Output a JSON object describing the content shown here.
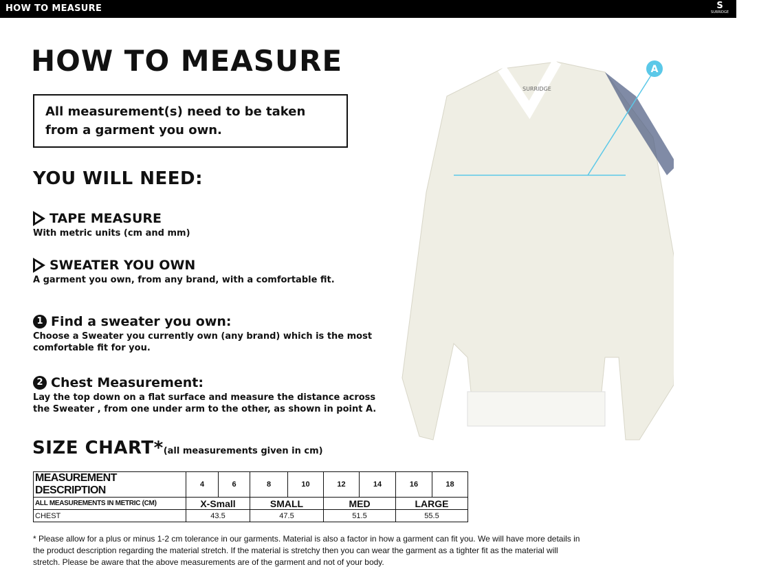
{
  "header": {
    "title": "HOW TO MEASURE",
    "logo_text": "SURRIDGE"
  },
  "page_title": "HOW TO MEASURE",
  "notice": "All measurement(s) need to be taken from a garment you own.",
  "you_will_need": {
    "heading": "YOU WILL NEED:",
    "items": [
      {
        "title": "TAPE MEASURE",
        "desc": "With metric units (cm and mm)"
      },
      {
        "title": "SWEATER YOU OWN",
        "desc": "A garment you own, from any brand, with a comfortable fit."
      }
    ]
  },
  "steps": [
    {
      "number": "1",
      "title": "Find a sweater you own:",
      "desc": "Choose a Sweater you currently own (any brand) which is the most comfortable fit for you."
    },
    {
      "number": "2",
      "title": "Chest Measurement:",
      "desc": "Lay the top down on a flat surface and measure the distance across the Sweater , from one under arm to the other, as shown in point A."
    }
  ],
  "diagram": {
    "point_label": "A",
    "garment_label": "SURRIDGE",
    "accent": "#5bc8e8"
  },
  "size_chart": {
    "heading": "SIZE CHART*",
    "note": "(all measurements given in cm)",
    "header_label": "MEASUREMENT DESCRIPTION",
    "sizes": [
      "4",
      "6",
      "8",
      "10",
      "12",
      "14",
      "16",
      "18"
    ],
    "metric_label": "ALL MEASUREMENTS IN METRIC (CM)",
    "groups": [
      "X-Small",
      "SMALL",
      "MED",
      "LARGE"
    ],
    "rows": [
      {
        "label": "CHEST",
        "values": [
          "43.5",
          "47.5",
          "51.5",
          "55.5"
        ]
      }
    ]
  },
  "footnote": "* Please allow for a plus or minus 1-2 cm tolerance in our garments. Material is also a factor in how a garment can fit you. We will have more details in the product description regarding the material stretch.  If the material is stretchy then you can wear the garment as a tighter fit as the material will stretch.  Please be aware that the above measurements are of the garment and not of your body."
}
